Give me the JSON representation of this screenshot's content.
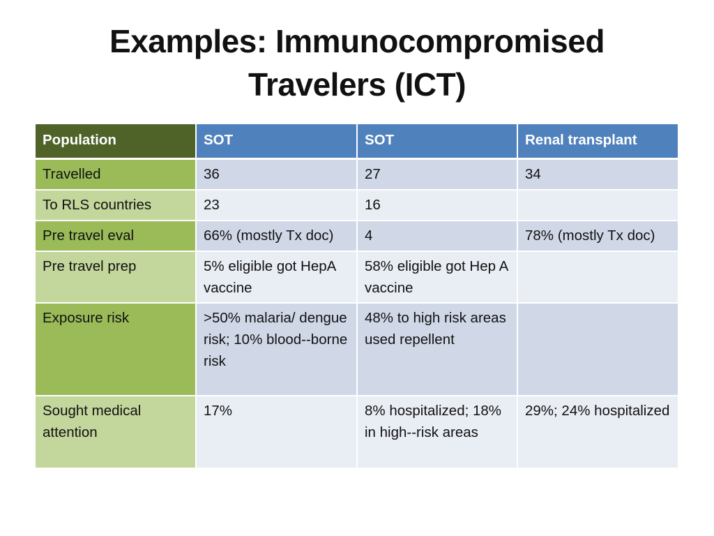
{
  "slide": {
    "title_line1": "Examples: Immunocompromised",
    "title_line2": "Travelers (ICT)"
  },
  "table": {
    "headers": [
      "Population",
      "SOT",
      "SOT",
      "Renal transplant"
    ],
    "rows": [
      {
        "label": "Travelled",
        "cells": [
          "36",
          "27",
          "34"
        ]
      },
      {
        "label": "To RLS countries",
        "cells": [
          "23",
          "16",
          ""
        ]
      },
      {
        "label": "Pre travel eval",
        "cells": [
          "66% (mostly Tx doc)",
          "4",
          "78% (mostly Tx doc)"
        ]
      },
      {
        "label": "Pre travel prep",
        "cells": [
          "5% eligible got HepA vaccine",
          "58% eligible got Hep A vaccine",
          ""
        ]
      },
      {
        "label": "Exposure risk",
        "cells": [
          ">50% malaria/ dengue risk; 10% blood--borne risk",
          "48% to high risk areas used repellent",
          ""
        ]
      },
      {
        "label": "Sought medical attention",
        "cells": [
          "17%",
          "8% hospitalized; 18% in high--risk areas",
          "29%; 24% hospitalized"
        ]
      }
    ]
  },
  "colors": {
    "header_blue": "#4f81bd",
    "header_green": "#4f6228",
    "label_green_dark": "#9bbb59",
    "label_green_light": "#c3d69b",
    "cell_blue_dark": "#d0d8e8",
    "cell_blue_light": "#e9edf4"
  }
}
